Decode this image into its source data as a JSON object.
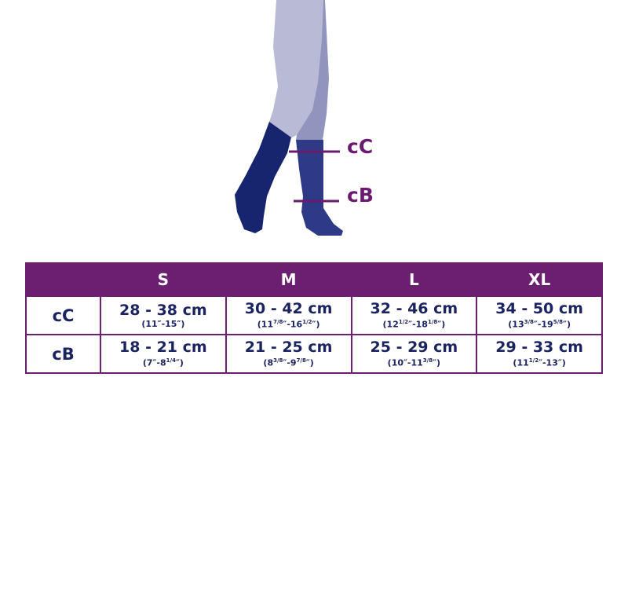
{
  "colors": {
    "purple": "#6b1f70",
    "navy": "#1b2460",
    "leg_light": "#b9bbd6",
    "leg_back": "#9194bd",
    "sock_front": "#17246e",
    "sock_back": "#2e3a85"
  },
  "illustration": {
    "labels": {
      "cC": "cC",
      "cB": "cB"
    }
  },
  "table": {
    "headers": [
      "",
      "S",
      "M",
      "L",
      "XL"
    ],
    "rows": [
      {
        "label": "cC",
        "cells": [
          {
            "cm": "28 - 38 cm",
            "in": [
              [
                "11",
                ""
              ],
              [
                "15",
                ""
              ]
            ]
          },
          {
            "cm": "30 - 42 cm",
            "in": [
              [
                "11",
                "7/8"
              ],
              [
                "16",
                "1/2"
              ]
            ]
          },
          {
            "cm": "32 - 46 cm",
            "in": [
              [
                "12",
                "1/2"
              ],
              [
                "18",
                "1/8"
              ]
            ]
          },
          {
            "cm": "34 - 50 cm",
            "in": [
              [
                "13",
                "3/8"
              ],
              [
                "19",
                "5/8"
              ]
            ]
          }
        ]
      },
      {
        "label": "cB",
        "cells": [
          {
            "cm": "18 - 21 cm",
            "in": [
              [
                "7",
                ""
              ],
              [
                "8",
                "1/4"
              ]
            ]
          },
          {
            "cm": "21 - 25 cm",
            "in": [
              [
                "8",
                "3/8"
              ],
              [
                "9",
                "7/8"
              ]
            ]
          },
          {
            "cm": "25 - 29 cm",
            "in": [
              [
                "10",
                ""
              ],
              [
                "11",
                "3/8"
              ]
            ]
          },
          {
            "cm": "29 - 33 cm",
            "in": [
              [
                "11",
                "1/2"
              ],
              [
                "13",
                ""
              ]
            ]
          }
        ]
      }
    ]
  }
}
